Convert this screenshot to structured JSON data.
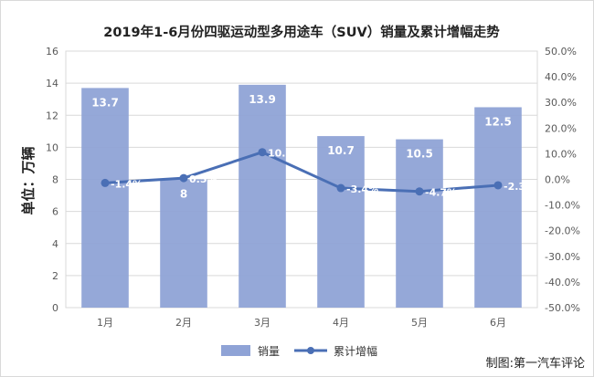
{
  "chart_data": {
    "type": "bar",
    "title": "2019年1-6月份四驱运动型多用途车（SUV）销量及累计增幅走势",
    "ylabel": "单位：万辆",
    "categories": [
      "1月",
      "2月",
      "3月",
      "4月",
      "5月",
      "6月"
    ],
    "ylim": [
      0,
      16
    ],
    "y_ticks": [
      "0",
      "2",
      "4",
      "6",
      "8",
      "10",
      "12",
      "14",
      "16"
    ],
    "y2lim": [
      -50,
      50
    ],
    "y2_ticks": [
      "-50.0%",
      "-40.0%",
      "-30.0%",
      "-20.0%",
      "-10.0%",
      "0.0%",
      "10.0%",
      "20.0%",
      "30.0%",
      "40.0%",
      "50.0%"
    ],
    "series": [
      {
        "name": "销量",
        "type": "bar",
        "axis": "left",
        "color": "#8fa3d6",
        "values": [
          13.7,
          8,
          13.9,
          10.7,
          10.5,
          12.5
        ],
        "labels": [
          "13.7",
          "8",
          "13.9",
          "10.7",
          "10.5",
          "12.5"
        ]
      },
      {
        "name": "累计增幅",
        "type": "line",
        "axis": "right",
        "color": "#4a6fb5",
        "values": [
          -1.4,
          0.5,
          10.6,
          -3.4,
          -4.7,
          -2.3
        ],
        "labels": [
          "-1.4%",
          "0.5%",
          "10.6%",
          "-3.4%",
          "-4.7%",
          "-2.3%"
        ]
      }
    ],
    "grid": true,
    "legend_position": "bottom",
    "source": "制图:第一汽车评论"
  }
}
